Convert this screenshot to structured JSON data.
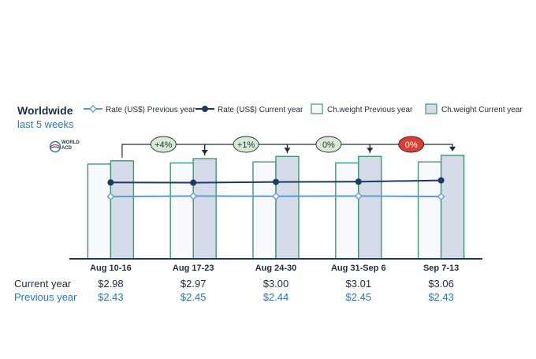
{
  "header": {
    "title": "Worldwide",
    "subtitle": "last 5 weeks",
    "logo_line1": "WORLD",
    "logo_line2": "ACD"
  },
  "legend": {
    "rate_prev": "Rate (US$) Previous year",
    "rate_cur": "Rate (US$) Current year",
    "cw_prev": "Ch.weight Previous year",
    "cw_cur": "Ch.weight Current year"
  },
  "colors": {
    "rate_prev": "#5b9bd5",
    "rate_cur": "#1f3864",
    "bar_stroke": "#3c9a6e",
    "bar_prev_fill": "#f7f9fd",
    "bar_cur_fill": "#d5dbe8",
    "bubble_green": "#d9ead3",
    "bubble_red": "#e03c31"
  },
  "rows": {
    "current_label": "Current year",
    "previous_label": "Previous year"
  },
  "chart_data": {
    "type": "bar",
    "categories": [
      "Aug 10-16",
      "Aug 17-23",
      "Aug 24-30",
      "Aug 31-Sep 6",
      "Sep 7-13"
    ],
    "series": [
      {
        "name": "Ch.weight Previous year",
        "values": [
          87,
          88,
          89,
          88,
          89
        ]
      },
      {
        "name": "Ch.weight Current year",
        "values": [
          90,
          92,
          94,
          94,
          95
        ]
      },
      {
        "name": "Rate (US$) Previous year",
        "values": [
          2.43,
          2.45,
          2.44,
          2.45,
          2.43
        ]
      },
      {
        "name": "Rate (US$) Current year",
        "values": [
          2.98,
          2.97,
          3.0,
          3.01,
          3.06
        ]
      }
    ],
    "rate_current_labels": [
      "$2.98",
      "$2.97",
      "$3.00",
      "$3.01",
      "$3.06"
    ],
    "rate_previous_labels": [
      "$2.43",
      "$2.45",
      "$2.44",
      "$2.45",
      "$2.43"
    ],
    "weekly_change": [
      "+4%",
      "+1%",
      "0%",
      "0%"
    ],
    "weekly_change_status": [
      "positive",
      "positive",
      "neutral",
      "negative"
    ],
    "bar_ylim": [
      0,
      100
    ],
    "rate_ylim": [
      0,
      4.25
    ],
    "grid": false,
    "legend_position": "top"
  }
}
